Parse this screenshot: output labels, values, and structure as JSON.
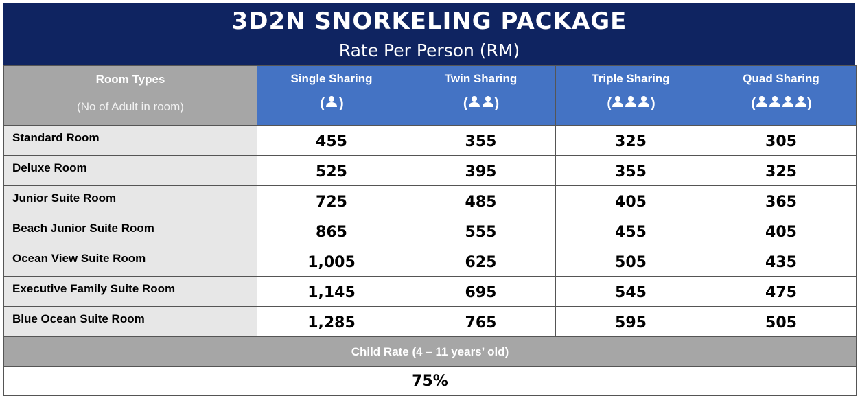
{
  "title": "3D2N SNORKELING PACKAGE",
  "subtitle": "Rate Per Person (RM)",
  "header": {
    "room_types_label": "Room Types",
    "room_types_sub": "(No of Adult in room)",
    "columns": [
      {
        "label": "Single Sharing",
        "icon": "(👤)"
      },
      {
        "label": "Twin Sharing",
        "icon": "(👥)"
      },
      {
        "label": "Triple Sharing",
        "icon": "(👤👤👤)"
      },
      {
        "label": "Quad Sharing",
        "icon": "(👤👤👤👤)"
      }
    ]
  },
  "rows": [
    {
      "name": "Standard Room",
      "values": [
        "455",
        "355",
        "325",
        "305"
      ]
    },
    {
      "name": "Deluxe Room",
      "values": [
        "525",
        "395",
        "355",
        "325"
      ]
    },
    {
      "name": "Junior Suite Room",
      "values": [
        "725",
        "485",
        "405",
        "365"
      ]
    },
    {
      "name": "Beach Junior Suite Room",
      "values": [
        "865",
        "555",
        "455",
        "405"
      ]
    },
    {
      "name": "Ocean View Suite Room",
      "values": [
        "1,005",
        "625",
        "505",
        "435"
      ]
    },
    {
      "name": "Executive Family Suite Room",
      "values": [
        "1,145",
        "695",
        "545",
        "475"
      ]
    },
    {
      "name": "Blue Ocean Suite Room",
      "values": [
        "1,285",
        "765",
        "595",
        "505"
      ]
    }
  ],
  "child": {
    "label": "Child Rate (4 – 11 years’ old)",
    "value": "75%"
  },
  "colors": {
    "title_bg": "#0f2461",
    "header_blue": "#4473c4",
    "header_grey": "#a6a6a6",
    "room_cell_bg": "#e7e7e7"
  }
}
